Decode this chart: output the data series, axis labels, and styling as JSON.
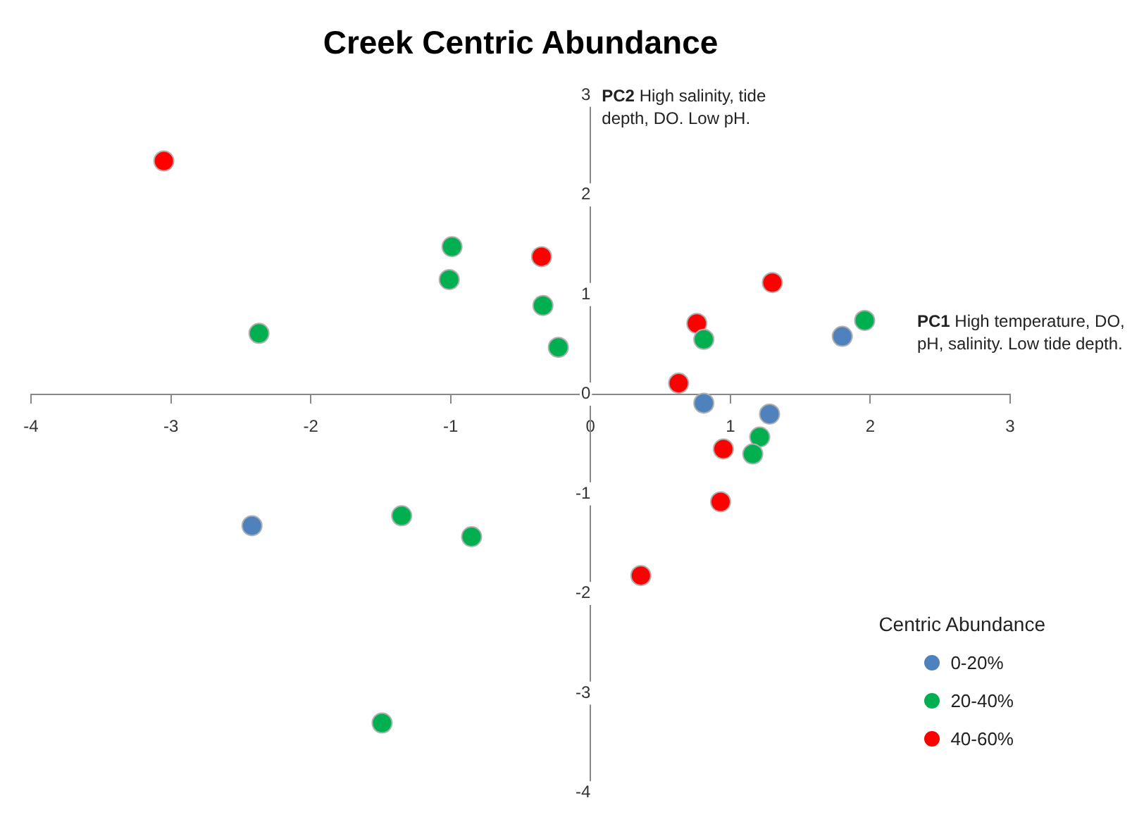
{
  "chart_data": {
    "type": "scatter",
    "title": "Creek Centric Abundance",
    "xlabel": "PC1 High temperature, DO, pH, salinity. Low tide depth.",
    "ylabel": "PC2 High salinity, tide depth,  DO. Low pH.",
    "legend_title": "Centric Abundance",
    "legend": "bottom right",
    "grid": false,
    "marker": "circle",
    "xlim": [
      -4,
      3
    ],
    "xticks": [
      -4,
      -3,
      -2,
      -1,
      0,
      1,
      2,
      3
    ],
    "ylim": [
      -4,
      3
    ],
    "yticks": [
      -4,
      -3,
      -2,
      -1,
      0,
      1,
      2,
      3
    ],
    "series": [
      {
        "name": "0-20%",
        "color": "#4f81bd",
        "x": [
          -2.42,
          0.81,
          1.28,
          1.8
        ],
        "values": [
          -1.32,
          -0.09,
          -0.2,
          0.58
        ]
      },
      {
        "name": "20-40%",
        "color": "#00b050",
        "x": [
          -2.37,
          -0.99,
          -1.01,
          -0.34,
          -0.23,
          0.81,
          1.96,
          1.21,
          1.16,
          -1.35,
          -0.85,
          -1.49
        ],
        "values": [
          0.61,
          1.48,
          1.15,
          0.89,
          0.47,
          0.55,
          0.74,
          -0.43,
          -0.6,
          -1.22,
          -1.43,
          -3.3
        ]
      },
      {
        "name": "40-60%",
        "color": "#ff0000",
        "x": [
          -3.05,
          -0.35,
          1.3,
          0.76,
          0.63,
          0.95,
          0.93,
          0.36
        ],
        "values": [
          2.34,
          1.38,
          1.12,
          0.71,
          0.11,
          -0.55,
          -1.08,
          -1.82
        ]
      }
    ]
  }
}
